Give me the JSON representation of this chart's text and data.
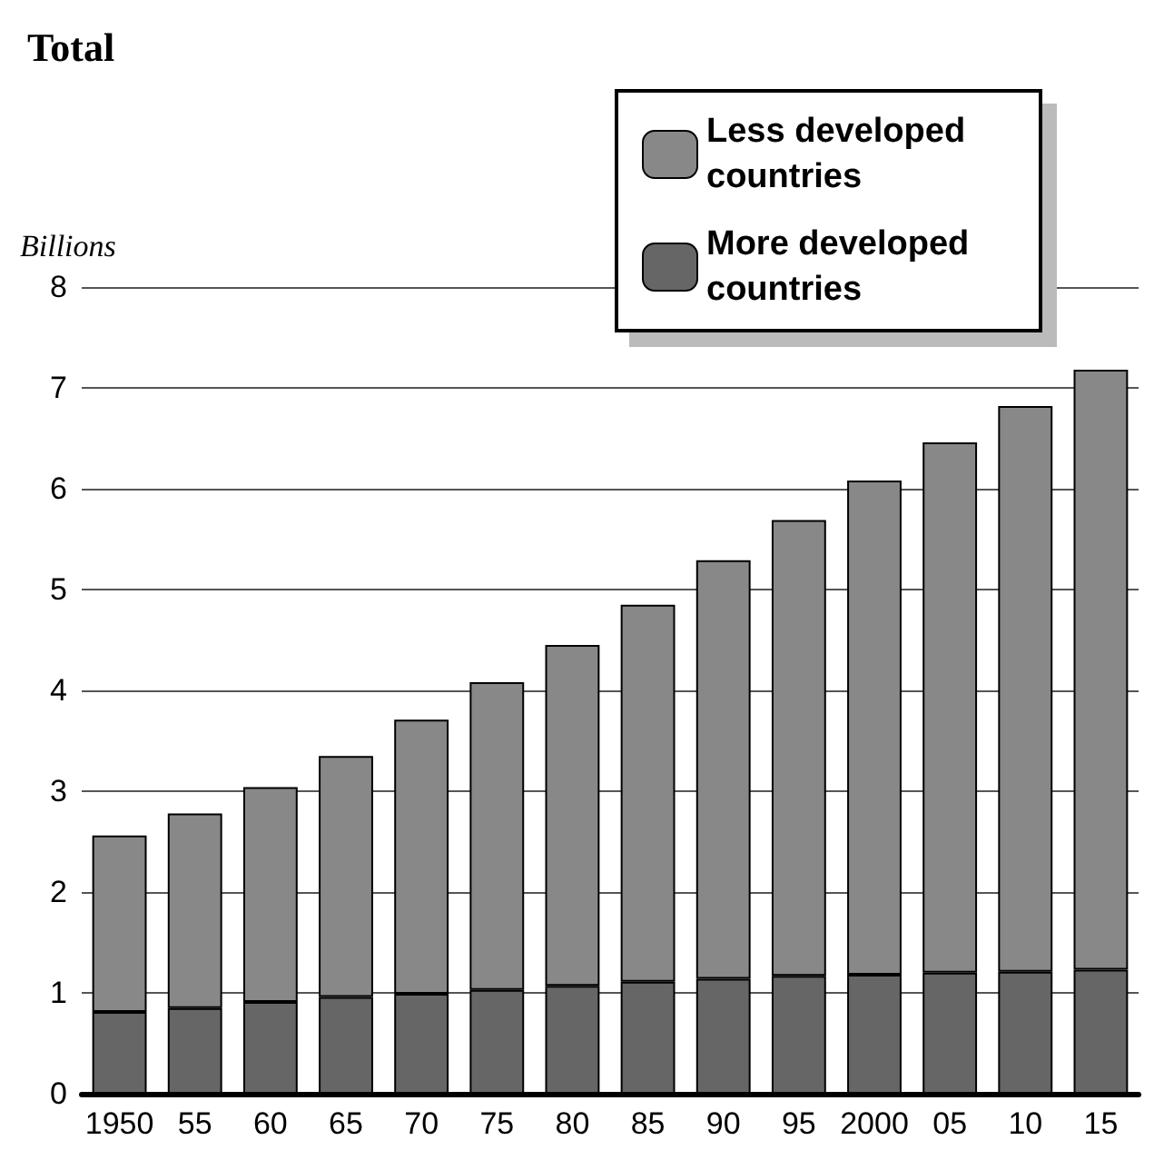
{
  "chart_data": {
    "type": "bar",
    "title": "Total",
    "ylabel": "Billions",
    "categories": [
      "1950",
      "55",
      "60",
      "65",
      "70",
      "75",
      "80",
      "85",
      "90",
      "95",
      "2000",
      "05",
      "10",
      "15"
    ],
    "stacked": true,
    "series": [
      {
        "name": "More developed countries",
        "color": "#666666",
        "values": [
          0.81,
          0.85,
          0.91,
          0.96,
          0.99,
          1.03,
          1.07,
          1.11,
          1.14,
          1.17,
          1.18,
          1.2,
          1.21,
          1.23
        ]
      },
      {
        "name": "Less developed countries",
        "color": "#888888",
        "values": [
          1.75,
          1.93,
          2.13,
          2.39,
          2.72,
          3.05,
          3.38,
          3.74,
          4.15,
          4.52,
          4.9,
          5.26,
          5.61,
          5.95
        ]
      }
    ],
    "ylim": [
      0,
      8
    ],
    "yticks": [
      0,
      1,
      2,
      3,
      4,
      5,
      6,
      7,
      8
    ],
    "grid": "y",
    "legend": "top right"
  }
}
